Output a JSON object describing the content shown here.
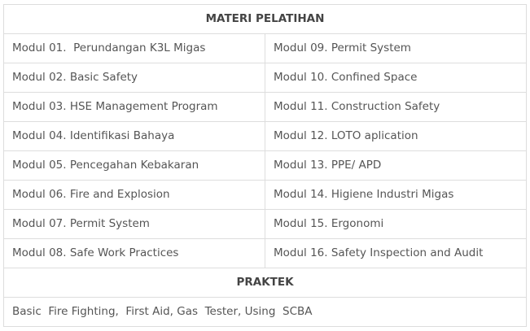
{
  "section_materi": {
    "title": "MATERI PELATIHAN",
    "rows": [
      [
        "Modul 01.  Perundangan K3L Migas",
        "Modul 09. Permit System"
      ],
      [
        "Modul 02. Basic Safety",
        "Modul 10. Confined Space"
      ],
      [
        "Modul 03. HSE Management Program",
        "Modul 11. Construction Safety"
      ],
      [
        "Modul 04. Identifikasi Bahaya",
        "Modul 12. LOTO aplication"
      ],
      [
        "Modul 05. Pencegahan Kebakaran",
        "Modul 13. PPE/ APD"
      ],
      [
        "Modul 06. Fire and Explosion",
        "Modul 14. Higiene Industri Migas"
      ],
      [
        "Modul 07. Permit System",
        "Modul 15. Ergonomi"
      ],
      [
        "Modul 08. Safe Work Practices",
        "Modul 16. Safety Inspection and Audit"
      ]
    ]
  },
  "section_praktek": {
    "title": "PRAKTEK",
    "content": "Basic  Fire Fighting,  First Aid, Gas  Tester, Using  SCBA"
  },
  "colors": {
    "border": "#dddddd",
    "text": "#555555",
    "heading": "#444444"
  }
}
